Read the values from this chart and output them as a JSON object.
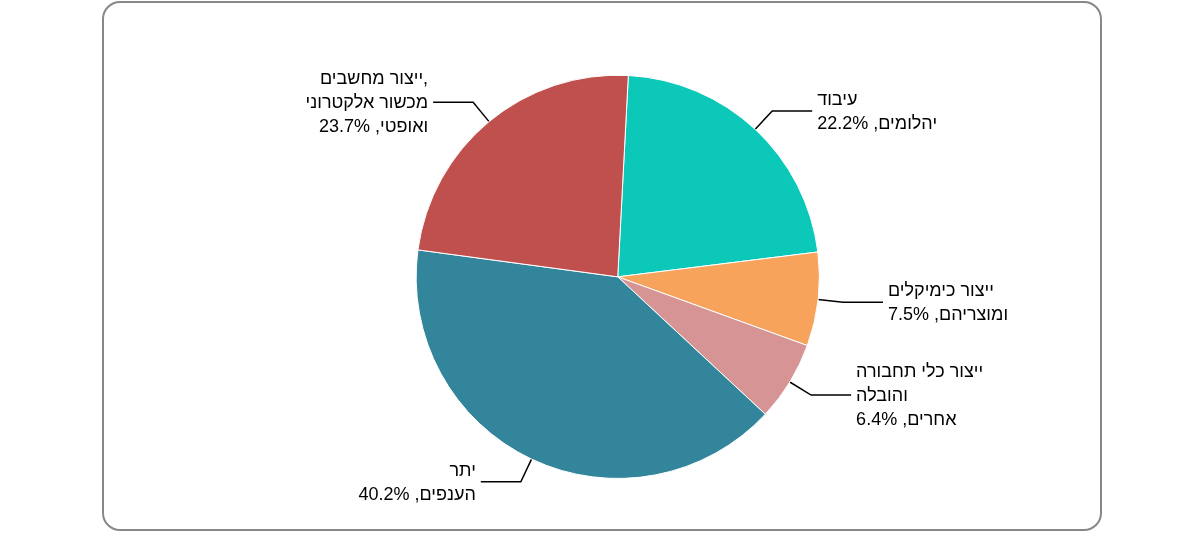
{
  "chart_data": {
    "type": "pie",
    "categories": [
      "עיבוד יהלומים",
      "ייצור כימיקלים ומוצריהם",
      "ייצור כלי תחבורה והובלה אחרים",
      "יתר הענפים",
      "ייצור מחשבים, מכשור אלקטרוני ואופטי"
    ],
    "values": [
      22.2,
      7.5,
      6.4,
      40.2,
      23.7
    ],
    "value_labels": [
      "22.2%",
      "7.5%",
      "6.4%",
      "40.2%",
      "23.7%"
    ],
    "colors": [
      "#0bc8b9",
      "#f7a35c",
      "#d69594",
      "#32859b",
      "#c0504d"
    ],
    "legend": false
  }
}
